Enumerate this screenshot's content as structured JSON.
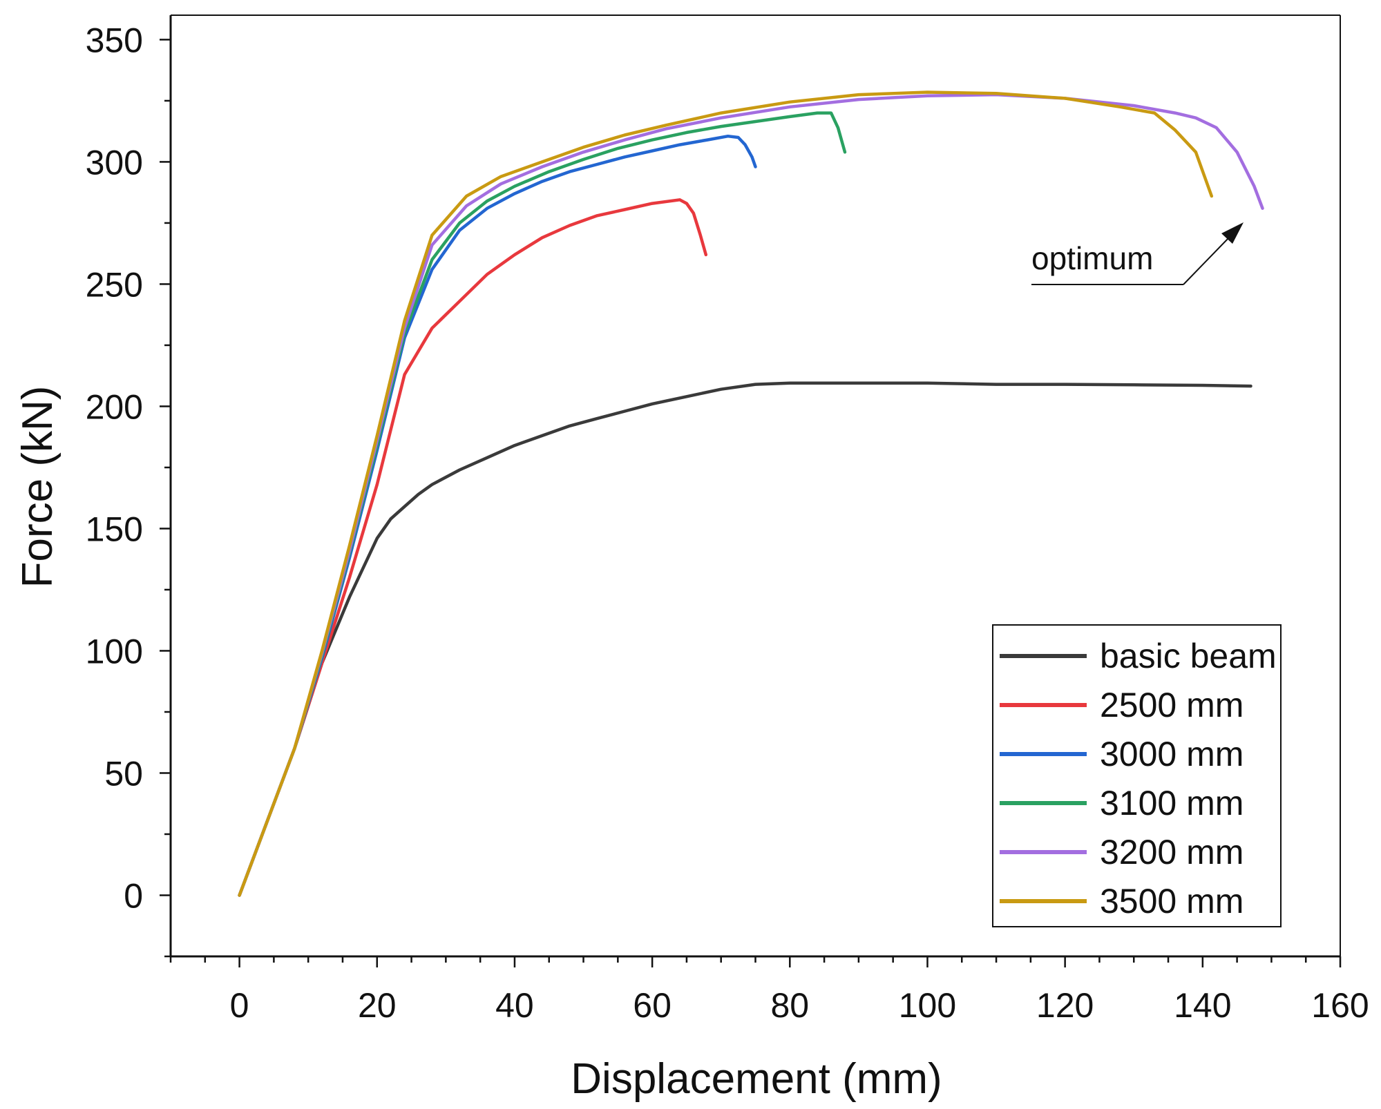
{
  "chart_data": {
    "type": "line",
    "title": "",
    "xlabel": "Displacement (mm)",
    "ylabel": "Force (kN)",
    "xlim": [
      -10,
      160
    ],
    "ylim": [
      -25,
      360
    ],
    "xticks": [
      0,
      20,
      40,
      60,
      80,
      100,
      120,
      140,
      160
    ],
    "yticks": [
      0,
      50,
      100,
      150,
      200,
      250,
      300,
      350
    ],
    "x_minor_step": 5,
    "y_minor_step": 25,
    "grid": false,
    "legend_position": "bottom-right",
    "series": [
      {
        "name": "basic beam",
        "color": "#3a3a3a",
        "points": [
          [
            0,
            0
          ],
          [
            4,
            30
          ],
          [
            8,
            60
          ],
          [
            12,
            95
          ],
          [
            16,
            122
          ],
          [
            20,
            146
          ],
          [
            22,
            154
          ],
          [
            24,
            159
          ],
          [
            26,
            164
          ],
          [
            28,
            168
          ],
          [
            32,
            174
          ],
          [
            36,
            179
          ],
          [
            40,
            184
          ],
          [
            44,
            188
          ],
          [
            48,
            192
          ],
          [
            52,
            195
          ],
          [
            56,
            198
          ],
          [
            60,
            201
          ],
          [
            65,
            204
          ],
          [
            70,
            207
          ],
          [
            75,
            209
          ],
          [
            80,
            209.5
          ],
          [
            90,
            209.5
          ],
          [
            100,
            209.5
          ],
          [
            110,
            209
          ],
          [
            120,
            209
          ],
          [
            130,
            208.8
          ],
          [
            140,
            208.6
          ],
          [
            147,
            208.3
          ]
        ]
      },
      {
        "name": "2500 mm",
        "color": "#e8383d",
        "points": [
          [
            0,
            0
          ],
          [
            4,
            30
          ],
          [
            8,
            60
          ],
          [
            12,
            95
          ],
          [
            16,
            130
          ],
          [
            20,
            168
          ],
          [
            24,
            213
          ],
          [
            28,
            232
          ],
          [
            32,
            243
          ],
          [
            36,
            254
          ],
          [
            40,
            262
          ],
          [
            44,
            269
          ],
          [
            48,
            274
          ],
          [
            52,
            278
          ],
          [
            56,
            280.5
          ],
          [
            60,
            283
          ],
          [
            64,
            284.5
          ],
          [
            65,
            283
          ],
          [
            66,
            279
          ],
          [
            67,
            270
          ],
          [
            67.8,
            262
          ]
        ]
      },
      {
        "name": "3000 mm",
        "color": "#2366d1",
        "points": [
          [
            0,
            0
          ],
          [
            4,
            30
          ],
          [
            8,
            60
          ],
          [
            12,
            97
          ],
          [
            16,
            138
          ],
          [
            20,
            182
          ],
          [
            24,
            228
          ],
          [
            28,
            256
          ],
          [
            32,
            272
          ],
          [
            36,
            281
          ],
          [
            40,
            287
          ],
          [
            44,
            292
          ],
          [
            48,
            296
          ],
          [
            52,
            299
          ],
          [
            56,
            302
          ],
          [
            60,
            304.5
          ],
          [
            64,
            307
          ],
          [
            68,
            309
          ],
          [
            71,
            310.5
          ],
          [
            72.5,
            310
          ],
          [
            73.5,
            307
          ],
          [
            74.5,
            302
          ],
          [
            75,
            298
          ]
        ]
      },
      {
        "name": "3100 mm",
        "color": "#2aa161",
        "points": [
          [
            0,
            0
          ],
          [
            4,
            30
          ],
          [
            8,
            60
          ],
          [
            12,
            98
          ],
          [
            16,
            140
          ],
          [
            20,
            184
          ],
          [
            24,
            230
          ],
          [
            28,
            260
          ],
          [
            32,
            275
          ],
          [
            36,
            284
          ],
          [
            40,
            290
          ],
          [
            45,
            296
          ],
          [
            50,
            301
          ],
          [
            55,
            305.5
          ],
          [
            60,
            309
          ],
          [
            65,
            312
          ],
          [
            70,
            314.5
          ],
          [
            75,
            316.5
          ],
          [
            80,
            318.5
          ],
          [
            84,
            320
          ],
          [
            86,
            320
          ],
          [
            87,
            314
          ],
          [
            88,
            304
          ]
        ]
      },
      {
        "name": "3200 mm",
        "color": "#a36ee0",
        "points": [
          [
            0,
            0
          ],
          [
            4,
            30
          ],
          [
            8,
            60
          ],
          [
            12,
            99
          ],
          [
            16,
            141
          ],
          [
            20,
            186
          ],
          [
            24,
            232
          ],
          [
            28,
            266
          ],
          [
            33,
            282
          ],
          [
            38,
            291
          ],
          [
            44,
            298
          ],
          [
            50,
            304
          ],
          [
            56,
            309
          ],
          [
            62,
            313.5
          ],
          [
            70,
            318
          ],
          [
            80,
            322.5
          ],
          [
            90,
            325.5
          ],
          [
            100,
            327
          ],
          [
            110,
            327.5
          ],
          [
            120,
            326
          ],
          [
            130,
            323
          ],
          [
            136,
            320
          ],
          [
            139,
            318
          ],
          [
            142,
            314
          ],
          [
            145,
            304
          ],
          [
            147.5,
            290
          ],
          [
            148.7,
            281
          ]
        ]
      },
      {
        "name": "3500 mm",
        "color": "#c99a12",
        "points": [
          [
            0,
            0
          ],
          [
            4,
            30
          ],
          [
            8,
            60
          ],
          [
            12,
            100
          ],
          [
            16,
            143
          ],
          [
            20,
            188
          ],
          [
            24,
            235
          ],
          [
            28,
            270
          ],
          [
            33,
            286
          ],
          [
            38,
            294
          ],
          [
            44,
            300
          ],
          [
            50,
            306
          ],
          [
            56,
            311
          ],
          [
            62,
            315
          ],
          [
            70,
            320
          ],
          [
            80,
            324.5
          ],
          [
            90,
            327.5
          ],
          [
            100,
            328.5
          ],
          [
            110,
            328
          ],
          [
            120,
            326
          ],
          [
            128,
            322.5
          ],
          [
            133,
            320
          ],
          [
            136,
            313
          ],
          [
            139,
            304
          ],
          [
            141.3,
            286
          ]
        ]
      }
    ],
    "annotations": [
      {
        "text": "optimum",
        "points_to": [
          149,
          277
        ]
      }
    ]
  }
}
